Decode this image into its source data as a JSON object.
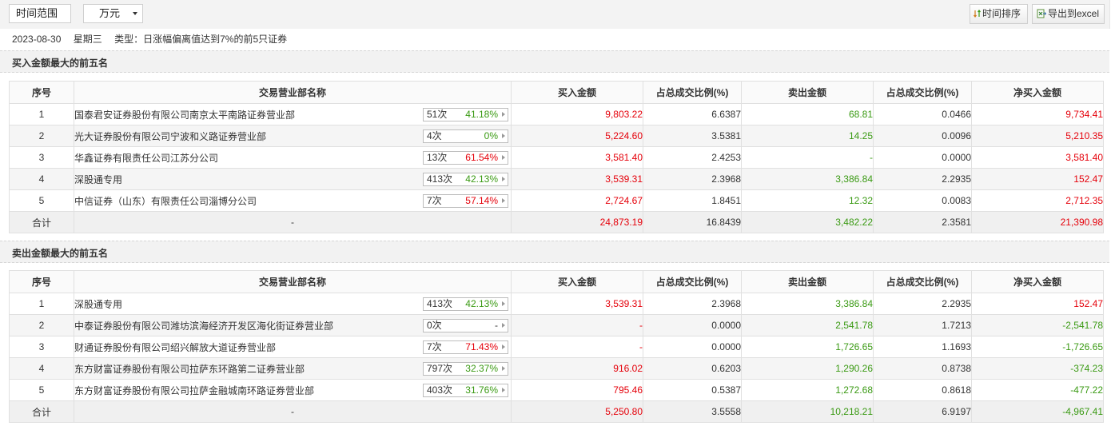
{
  "toolbar": {
    "time_range_label": "时间范围",
    "unit_value": "万元",
    "sort_button_label": "时间排序",
    "export_button_label": "导出到excel"
  },
  "info": {
    "date": "2023-08-30",
    "weekday": "星期三",
    "type_text": "类型：日涨幅偏离值达到7%的前5只证券"
  },
  "columns": [
    "序号",
    "交易营业部名称",
    "买入金额",
    "占总成交比例(%)",
    "卖出金额",
    "占总成交比例(%)",
    "净买入金额"
  ],
  "colors": {
    "up": "#e5000a",
    "down": "#3a9a13"
  },
  "buy_section": {
    "title": "买入金额最大的前五名",
    "rows": [
      {
        "index": "1",
        "name": "国泰君安证券股份有限公司南京太平南路证券营业部",
        "count": "51次",
        "rate": "41.18%",
        "rate_color": "green",
        "buy": "9,803.22",
        "buy_ratio": "6.6387",
        "sell": "68.81",
        "sell_ratio": "0.0466",
        "net": "9,734.41",
        "net_color": "red"
      },
      {
        "index": "2",
        "name": "光大证券股份有限公司宁波和义路证券营业部",
        "count": "4次",
        "rate": "0%",
        "rate_color": "green",
        "buy": "5,224.60",
        "buy_ratio": "3.5381",
        "sell": "14.25",
        "sell_ratio": "0.0096",
        "net": "5,210.35",
        "net_color": "red"
      },
      {
        "index": "3",
        "name": "华鑫证券有限责任公司江苏分公司",
        "count": "13次",
        "rate": "61.54%",
        "rate_color": "red",
        "buy": "3,581.40",
        "buy_ratio": "2.4253",
        "sell": "-",
        "sell_ratio": "0.0000",
        "net": "3,581.40",
        "net_color": "red"
      },
      {
        "index": "4",
        "name": "深股通专用",
        "count": "413次",
        "rate": "42.13%",
        "rate_color": "green",
        "buy": "3,539.31",
        "buy_ratio": "2.3968",
        "sell": "3,386.84",
        "sell_ratio": "2.2935",
        "net": "152.47",
        "net_color": "red"
      },
      {
        "index": "5",
        "name": "中信证券（山东）有限责任公司淄博分公司",
        "count": "7次",
        "rate": "57.14%",
        "rate_color": "red",
        "buy": "2,724.67",
        "buy_ratio": "1.8451",
        "sell": "12.32",
        "sell_ratio": "0.0083",
        "net": "2,712.35",
        "net_color": "red"
      }
    ],
    "total": {
      "label": "合计",
      "name": "-",
      "buy": "24,873.19",
      "buy_ratio": "16.8439",
      "sell": "3,482.22",
      "sell_ratio": "2.3581",
      "net": "21,390.98",
      "net_color": "red"
    }
  },
  "sell_section": {
    "title": "卖出金额最大的前五名",
    "rows": [
      {
        "index": "1",
        "name": "深股通专用",
        "count": "413次",
        "rate": "42.13%",
        "rate_color": "green",
        "buy": "3,539.31",
        "buy_ratio": "2.3968",
        "sell": "3,386.84",
        "sell_ratio": "2.2935",
        "net": "152.47",
        "net_color": "red"
      },
      {
        "index": "2",
        "name": "中泰证券股份有限公司潍坊滨海经济开发区海化街证券营业部",
        "count": "0次",
        "rate": "-",
        "rate_color": "none",
        "buy": "-",
        "buy_ratio": "0.0000",
        "sell": "2,541.78",
        "sell_ratio": "1.7213",
        "net": "-2,541.78",
        "net_color": "green"
      },
      {
        "index": "3",
        "name": "财通证券股份有限公司绍兴解放大道证券营业部",
        "count": "7次",
        "rate": "71.43%",
        "rate_color": "red",
        "buy": "-",
        "buy_ratio": "0.0000",
        "sell": "1,726.65",
        "sell_ratio": "1.1693",
        "net": "-1,726.65",
        "net_color": "green"
      },
      {
        "index": "4",
        "name": "东方财富证券股份有限公司拉萨东环路第二证券营业部",
        "count": "797次",
        "rate": "32.37%",
        "rate_color": "green",
        "buy": "916.02",
        "buy_ratio": "0.6203",
        "sell": "1,290.26",
        "sell_ratio": "0.8738",
        "net": "-374.23",
        "net_color": "green"
      },
      {
        "index": "5",
        "name": "东方财富证券股份有限公司拉萨金融城南环路证券营业部",
        "count": "403次",
        "rate": "31.76%",
        "rate_color": "green",
        "buy": "795.46",
        "buy_ratio": "0.5387",
        "sell": "1,272.68",
        "sell_ratio": "0.8618",
        "net": "-477.22",
        "net_color": "green"
      }
    ],
    "total": {
      "label": "合计",
      "name": "-",
      "buy": "5,250.80",
      "buy_ratio": "3.5558",
      "sell": "10,218.21",
      "sell_ratio": "6.9197",
      "net": "-4,967.41",
      "net_color": "green"
    }
  }
}
